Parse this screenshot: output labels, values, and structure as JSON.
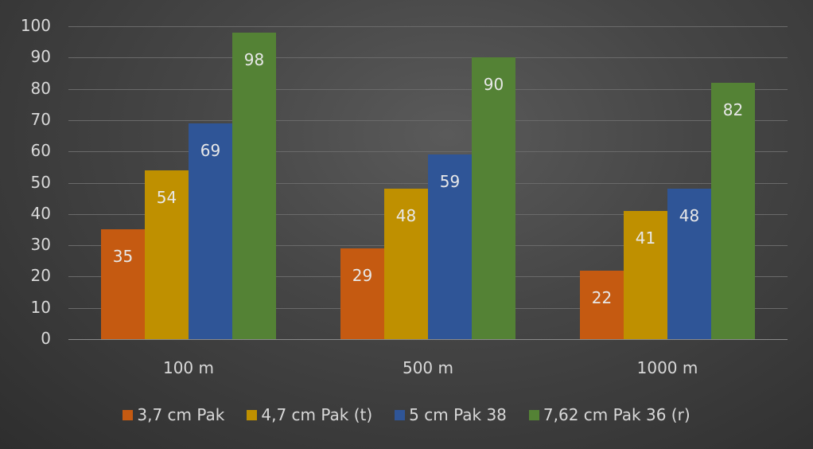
{
  "chart_data": {
    "type": "bar",
    "title": "",
    "xlabel": "",
    "ylabel": "",
    "ylim": [
      0,
      100
    ],
    "yticks": [
      0,
      10,
      20,
      30,
      40,
      50,
      60,
      70,
      80,
      90,
      100
    ],
    "grid": true,
    "legend_position": "bottom",
    "categories": [
      "100 m",
      "500 m",
      "1000 m"
    ],
    "series": [
      {
        "name": "3,7 cm Pak",
        "color": "#c55a11",
        "values": [
          35,
          29,
          22
        ]
      },
      {
        "name": "4,7 cm Pak (t)",
        "color": "#bf9000",
        "values": [
          54,
          48,
          41
        ]
      },
      {
        "name": "5 cm Pak 38",
        "color": "#2f5597",
        "values": [
          69,
          59,
          48
        ]
      },
      {
        "name": "7,62 cm Pak 36 (r)",
        "color": "#548235",
        "values": [
          98,
          90,
          82
        ]
      }
    ],
    "data_labels": true
  }
}
